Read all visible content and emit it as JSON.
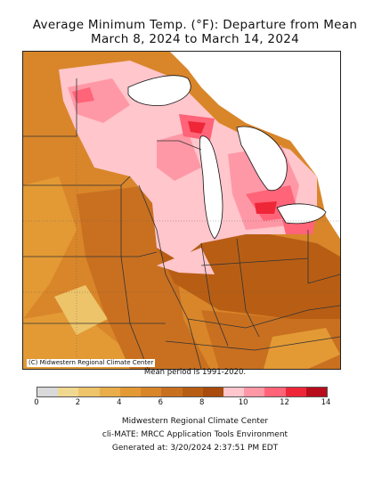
{
  "header": {
    "title_line1": "Average Minimum Temp. (°F): Departure from Mean",
    "title_line2": "March 8, 2024 to March 14, 2024"
  },
  "map": {
    "credit": "(C) Midwestern Regional Climate Center",
    "mean_period": "Mean period is 1991-2020.",
    "colors": {
      "lake": "#ffffff",
      "border": "#111111",
      "state_line": "#333333"
    }
  },
  "legend": {
    "ticks": [
      "0",
      "2",
      "4",
      "6",
      "8",
      "10",
      "12",
      "14"
    ],
    "bins": [
      {
        "range": "0 to 1",
        "color": "#d9d9d9"
      },
      {
        "range": "1 to 2",
        "color": "#f0d890"
      },
      {
        "range": "2 to 3",
        "color": "#edc46a"
      },
      {
        "range": "3 to 4",
        "color": "#e9ad4a"
      },
      {
        "range": "4 to 5",
        "color": "#e39a35"
      },
      {
        "range": "5 to 6",
        "color": "#d9862a"
      },
      {
        "range": "6 to 7",
        "color": "#c97020"
      },
      {
        "range": "7 to 8",
        "color": "#b85e14"
      },
      {
        "range": "8 to 9",
        "color": "#a84b0c"
      },
      {
        "range": "9 to 10",
        "color": "#ffc6cc"
      },
      {
        "range": "10 to 11",
        "color": "#ff98a6"
      },
      {
        "range": "11 to 12",
        "color": "#ff6478"
      },
      {
        "range": "12 to 13",
        "color": "#ee2638"
      },
      {
        "range": "13 to 14",
        "color": "#b80d1d"
      }
    ]
  },
  "footer": {
    "line1": "Midwestern Regional Climate Center",
    "line2": "cli-MATE: MRCC Application Tools Environment",
    "line3": "Generated at: 3/20/2024 2:37:51 PM EDT"
  }
}
